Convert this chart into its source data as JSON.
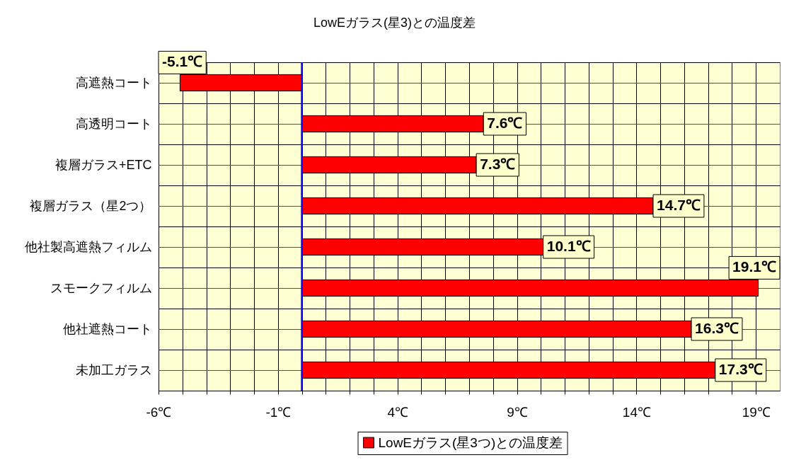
{
  "chart_data": {
    "type": "bar",
    "orientation": "horizontal",
    "title": "LowEガラス(星3)との温度差",
    "categories": [
      "高遮熱コート",
      "高透明コート",
      "複層ガラス+ETC",
      "複層ガラス（星2つ）",
      "他社製高遮熱フィルム",
      "スモークフィルム",
      "他社遮熱コート",
      "未加工ガラス"
    ],
    "series": [
      {
        "name": "LowEガラス(星3つ)との温度差",
        "color": "#ff0000",
        "values": [
          -5.1,
          7.6,
          7.3,
          14.7,
          10.1,
          19.1,
          16.3,
          17.3
        ],
        "value_labels": [
          "-5.1℃",
          "7.6℃",
          "7.3℃",
          "14.7℃",
          "10.1℃",
          "19.1℃",
          "16.3℃",
          "17.3℃"
        ]
      }
    ],
    "xlim": [
      -6,
      20
    ],
    "xticks": [
      {
        "value": -6,
        "label": "-6℃"
      },
      {
        "value": -5,
        "label": null
      },
      {
        "value": -4,
        "label": null
      },
      {
        "value": -3,
        "label": null
      },
      {
        "value": -2,
        "label": null
      },
      {
        "value": -1,
        "label": "-1℃"
      },
      {
        "value": 0,
        "label": null
      },
      {
        "value": 1,
        "label": null
      },
      {
        "value": 2,
        "label": null
      },
      {
        "value": 3,
        "label": null
      },
      {
        "value": 4,
        "label": "4℃"
      },
      {
        "value": 5,
        "label": null
      },
      {
        "value": 6,
        "label": null
      },
      {
        "value": 7,
        "label": null
      },
      {
        "value": 8,
        "label": null
      },
      {
        "value": 9,
        "label": "9℃"
      },
      {
        "value": 10,
        "label": null
      },
      {
        "value": 11,
        "label": null
      },
      {
        "value": 12,
        "label": null
      },
      {
        "value": 13,
        "label": null
      },
      {
        "value": 14,
        "label": "14℃"
      },
      {
        "value": 15,
        "label": null
      },
      {
        "value": 16,
        "label": null
      },
      {
        "value": 17,
        "label": null
      },
      {
        "value": 18,
        "label": null
      },
      {
        "value": 19,
        "label": "19℃"
      }
    ],
    "ref_lines": [
      {
        "axis": "x",
        "value": 0,
        "color": "#0000ff"
      }
    ],
    "grid": true,
    "legend": "bottom"
  }
}
